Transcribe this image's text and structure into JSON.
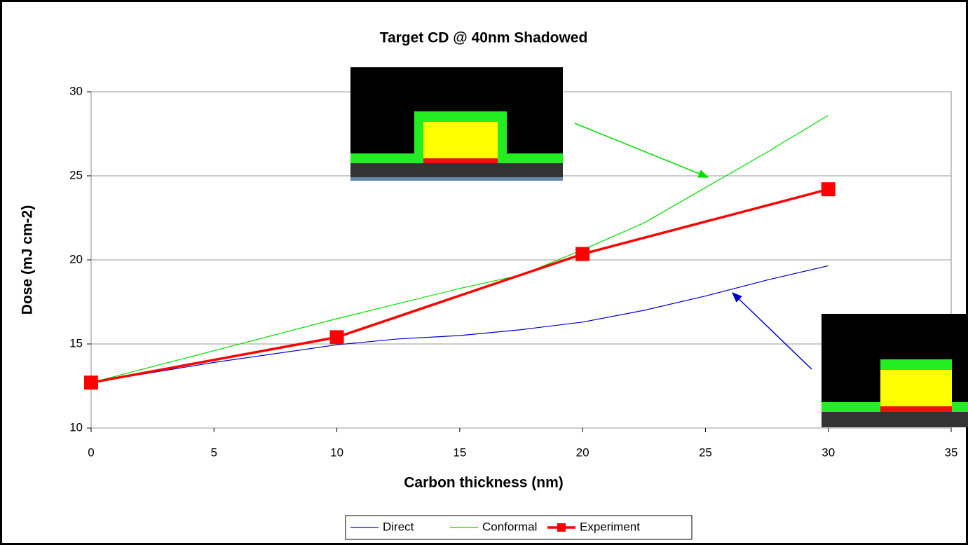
{
  "chart_data": {
    "type": "line",
    "title": "Target CD @ 40nm Shadowed",
    "x_label": "Carbon thickness (nm)",
    "y_label": "Dose (mJ cm-2)",
    "xlim": [
      0,
      35
    ],
    "xticks": [
      0,
      5,
      10,
      15,
      20,
      25,
      30,
      35
    ],
    "ylim": [
      10,
      30
    ],
    "yticks": [
      10,
      15,
      20,
      25,
      30
    ],
    "grid": true,
    "legend": "bottom",
    "series": [
      {
        "name": "Direct",
        "color": "#0000cc",
        "width": 1.2,
        "marker": false,
        "x": [
          0,
          5,
          10,
          12.5,
          15,
          17.5,
          20,
          22.5,
          25,
          27.5,
          30
        ],
        "values": [
          12.7,
          13.9,
          14.95,
          15.3,
          15.5,
          15.85,
          16.3,
          17.0,
          17.85,
          18.8,
          19.65
        ]
      },
      {
        "name": "Conformal",
        "color": "#00dd00",
        "width": 1.2,
        "marker": false,
        "x": [
          0,
          5,
          10,
          15,
          17.5,
          20,
          22.5,
          25,
          27.5,
          30
        ],
        "values": [
          12.7,
          14.6,
          16.5,
          18.3,
          19.1,
          20.6,
          22.2,
          24.3,
          26.4,
          28.6
        ]
      },
      {
        "name": "Experiment",
        "color": "#ff0000",
        "width": 3.5,
        "marker": true,
        "x": [
          0,
          10,
          20,
          30
        ],
        "values": [
          12.7,
          15.4,
          20.35,
          24.2
        ]
      }
    ]
  }
}
